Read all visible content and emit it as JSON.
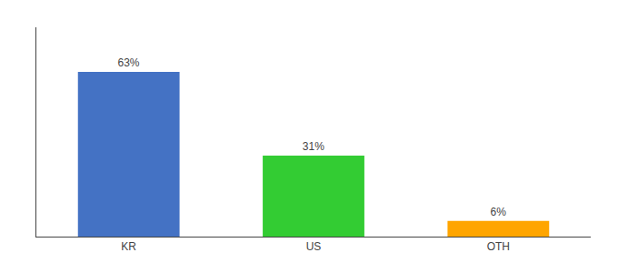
{
  "chart_data": {
    "type": "bar",
    "categories": [
      "KR",
      "US",
      "OTH"
    ],
    "values": [
      63,
      31,
      6
    ],
    "value_labels": [
      "63%",
      "31%",
      "6%"
    ],
    "colors": [
      "#4472C4",
      "#33CC33",
      "#FFA500"
    ],
    "ylim": [
      0,
      80
    ],
    "data_labels": true,
    "grid": false,
    "tick_labels": "x"
  }
}
